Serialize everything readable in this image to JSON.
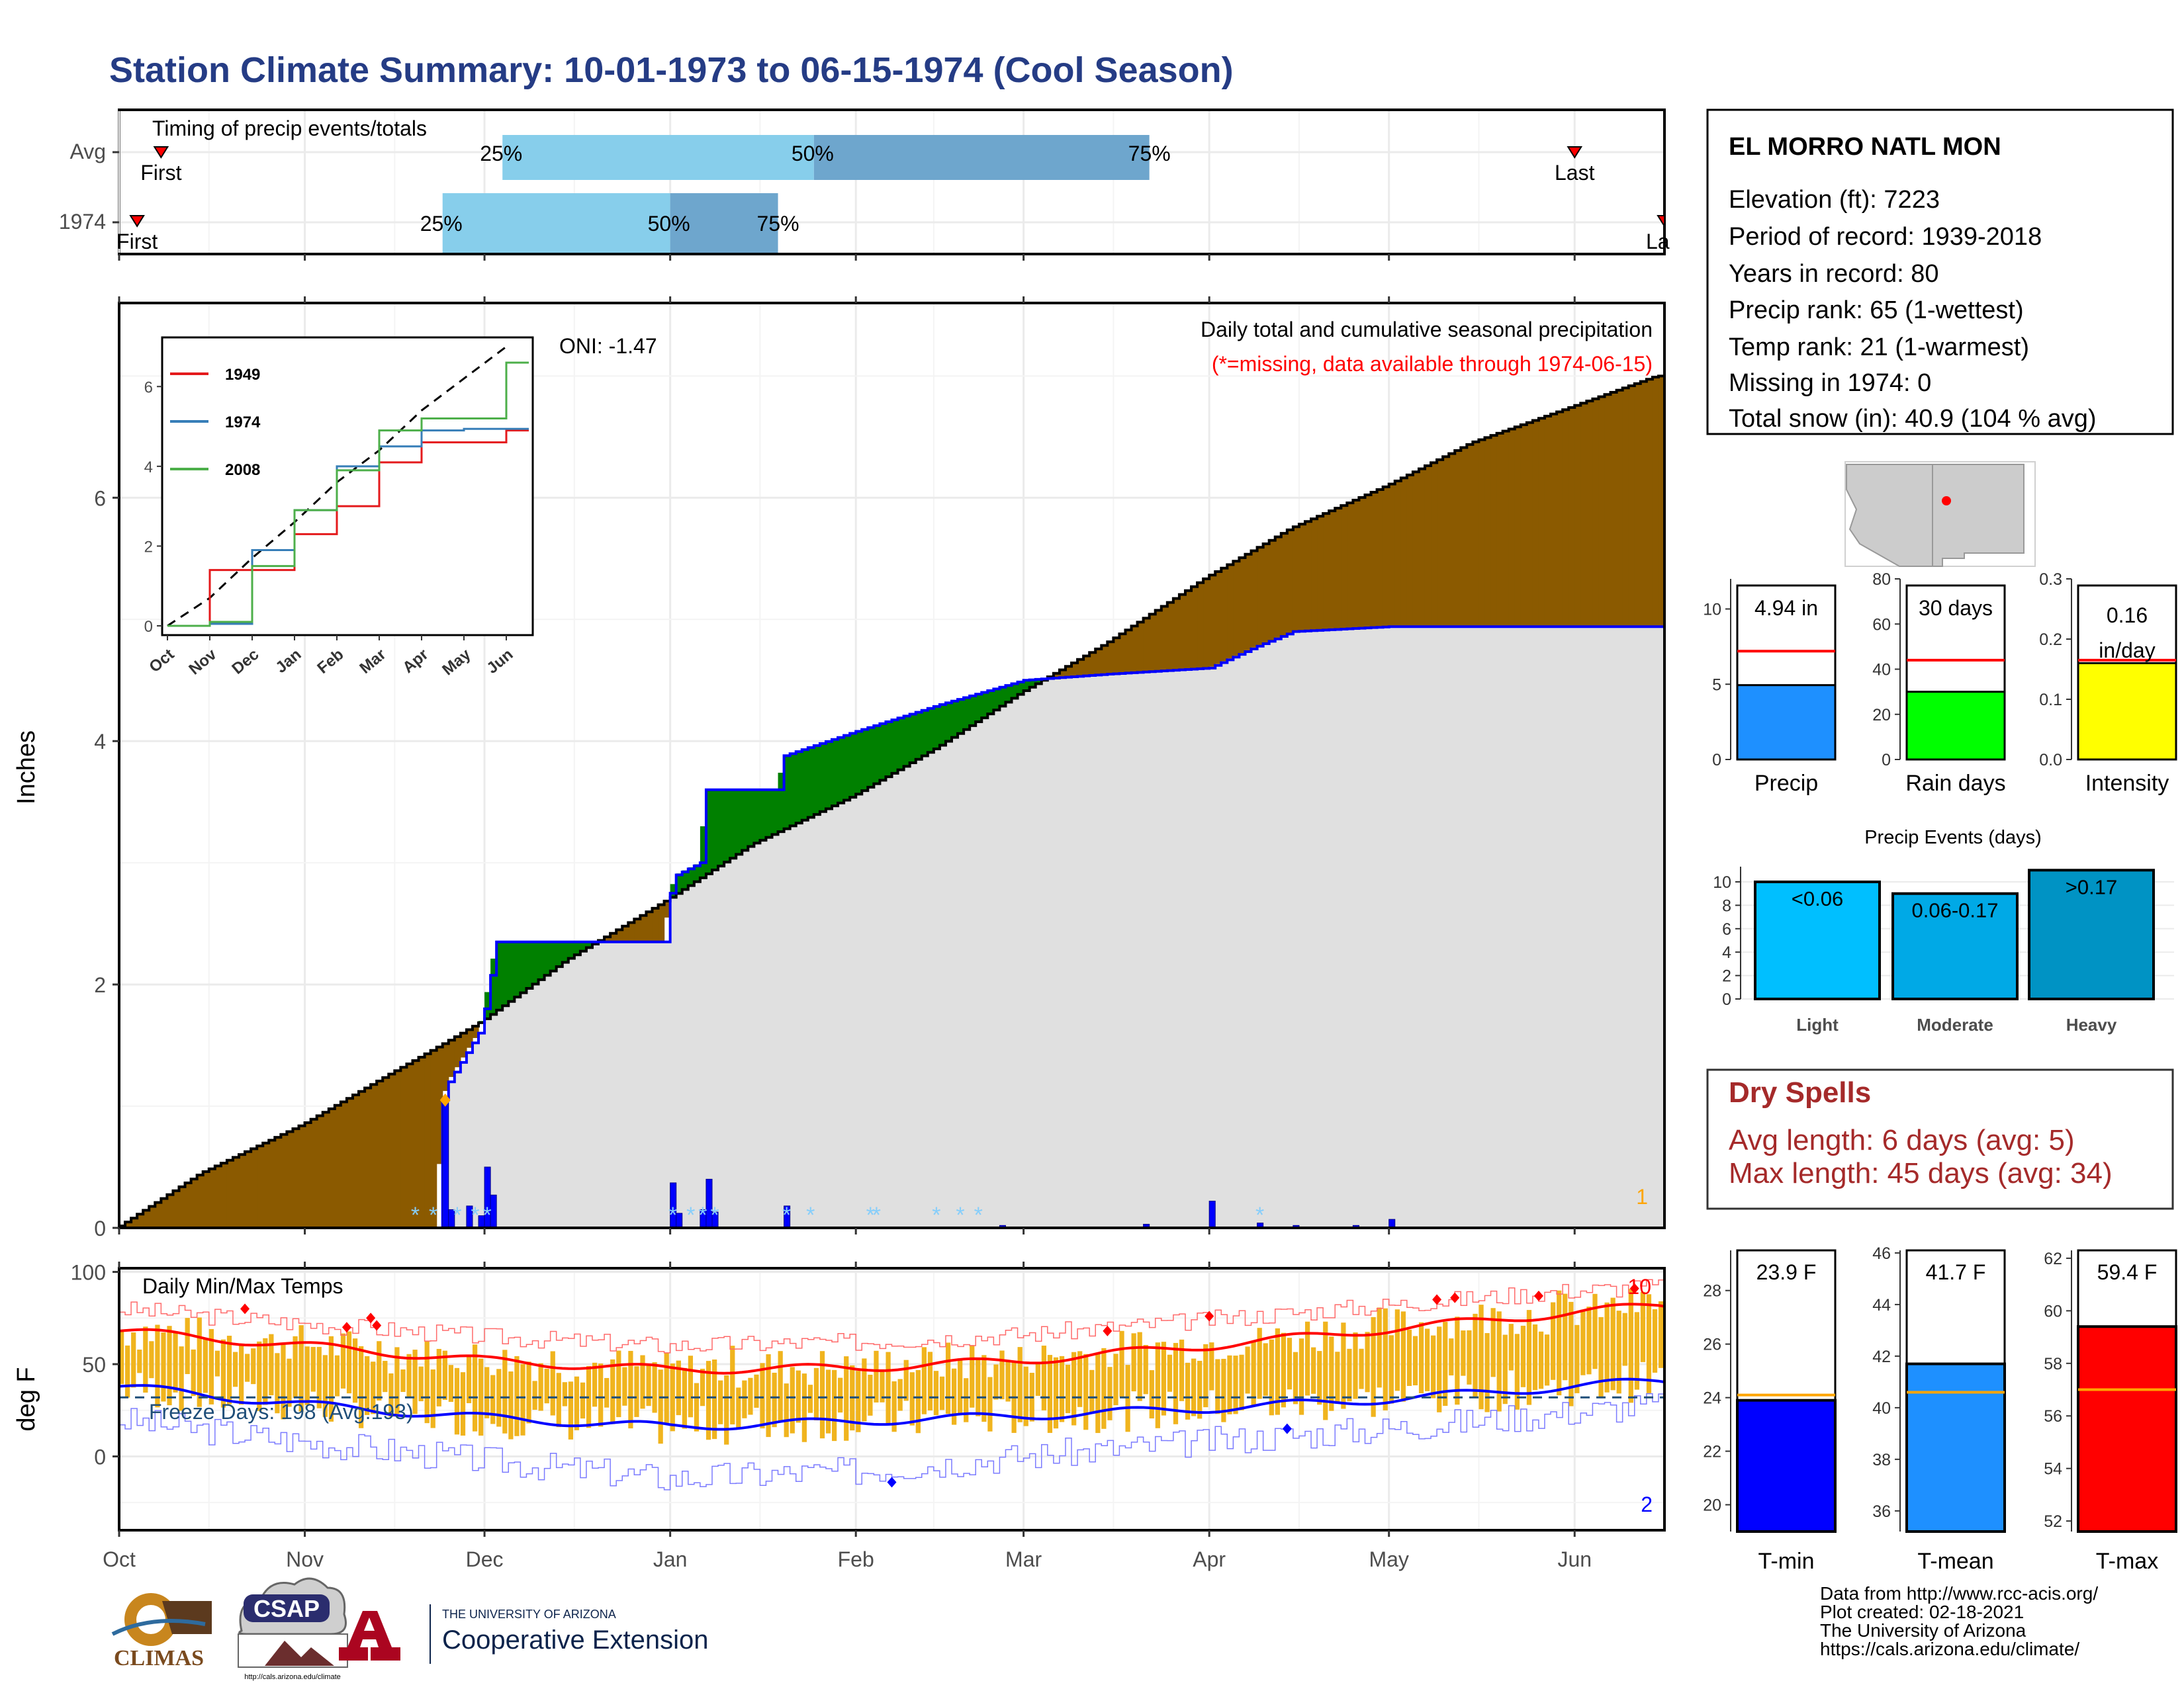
{
  "page": {
    "title": "Station Climate Summary: 10-01-1973 to 06-15-1974 (Cool Season)"
  },
  "timing": {
    "title": "Timing of precip events/totals",
    "rows": [
      {
        "label": "Avg",
        "first_label": "First",
        "last_label": "Last",
        "first_date": "1973-10-08",
        "last_date": "1974-06-01",
        "p25": "1973-12-04",
        "p50": "1974-01-25",
        "p75": "1974-03-22",
        "p25_label": "25%",
        "p50_label": "50%",
        "p75_label": "75%"
      },
      {
        "label": "1974",
        "first_label": "First",
        "last_label": "Last",
        "first_date": "1973-10-04",
        "last_date": "1974-06-15",
        "p25": "1973-11-24",
        "p50": "1974-01-01",
        "p75": "1974-01-19",
        "p25_label": "25%",
        "p50_label": "50%",
        "p75_label": "75%"
      }
    ]
  },
  "precip_panel": {
    "title": "Daily total and cumulative seasonal precipitation",
    "subtitle": "(*=missing, data available through 1974-06-15)",
    "ylabel": "Inches",
    "oni": "ONI: -1.47",
    "yticks": [
      "0",
      "2",
      "4",
      "6"
    ],
    "ylim": [
      0,
      7.6
    ],
    "corner_count": "1",
    "colors": {
      "above": "#008000",
      "below": "#8B5A00",
      "daily": "#0000FF",
      "avg_line": "#000000",
      "missing": "#87CEFA"
    }
  },
  "inset": {
    "yticks": [
      "0",
      "2",
      "4",
      "6"
    ],
    "xticks": [
      "Oct",
      "Nov",
      "Dec",
      "Jan",
      "Feb",
      "Mar",
      "Apr",
      "May",
      "Jun"
    ],
    "legend": [
      {
        "name": "1949",
        "color": "#E41A1C"
      },
      {
        "name": "1974",
        "color": "#377EB8"
      },
      {
        "name": "2008",
        "color": "#4DAF4A"
      }
    ]
  },
  "temp_panel": {
    "title": "Daily Min/Max Temps",
    "ylabel": "deg F",
    "yticks": [
      "0",
      "50",
      "100"
    ],
    "ylim": [
      -40,
      102
    ],
    "freeze_label": "Freeze Days: 198 (Avg:193)",
    "count_high": "10",
    "count_low": "2",
    "freeze_line": 32
  },
  "x_axis": {
    "months": [
      "Oct",
      "Nov",
      "Dec",
      "Jan",
      "Feb",
      "Mar",
      "Apr",
      "May",
      "Jun"
    ]
  },
  "station": {
    "name": "EL MORRO NATL MON",
    "lines": [
      "Elevation (ft): 7223",
      "Period of record: 1939-2018",
      "Years in record: 80",
      "Precip rank: 65 (1-wettest)",
      "Temp rank: 21 (1-warmest)",
      "Missing in 1974: 0",
      "Total snow (in): 40.9 (104 % avg)"
    ]
  },
  "summary_bars": [
    {
      "label": "Precip",
      "value": 4.94,
      "value_label": "4.94 in",
      "avg": 7.2,
      "ymax": 12,
      "yticks": [
        "0",
        "5",
        "10"
      ],
      "color": "#1E90FF"
    },
    {
      "label": "Rain days",
      "value": 30,
      "value_label": "30 days",
      "avg": 44,
      "ymax": 80,
      "yticks": [
        "0",
        "20",
        "40",
        "60",
        "80"
      ],
      "color": "#00FF00"
    },
    {
      "label": "Intensity",
      "value": 0.16,
      "value_label": "0.16",
      "value_unit": "in/day",
      "avg": 0.165,
      "ymax": 0.3,
      "yticks": [
        "0.0",
        "0.1",
        "0.2",
        "0.3"
      ],
      "color": "#FFFF00"
    }
  ],
  "precip_events": {
    "title": "Precip Events (days)",
    "yticks": [
      "0",
      "2",
      "4",
      "6",
      "8",
      "10"
    ],
    "bars": [
      {
        "label": "Light",
        "range": "<0.06",
        "value": 10,
        "color": "#00BFFF"
      },
      {
        "label": "Moderate",
        "range": "0.06-0.17",
        "value": 9,
        "color": "#00A9E6"
      },
      {
        "label": "Heavy",
        "range": ">0.17",
        "value": 11,
        "color": "#0093C4"
      }
    ]
  },
  "dry_spells": {
    "title": "Dry Spells",
    "avg_line": "Avg length: 6 days (avg: 5)",
    "max_line": "Max length: 45 days (avg: 34)"
  },
  "temp_bars": [
    {
      "label": "T-min",
      "value": 23.9,
      "value_label": "23.9 F",
      "avg": 24.1,
      "ylim": [
        19,
        29.5
      ],
      "yticks": [
        "20",
        "22",
        "24",
        "26",
        "28"
      ],
      "color": "#0000FF"
    },
    {
      "label": "T-mean",
      "value": 41.7,
      "value_label": "41.7 F",
      "avg": 40.6,
      "ylim": [
        35.2,
        46.1
      ],
      "yticks": [
        "36",
        "38",
        "40",
        "42",
        "44",
        "46"
      ],
      "color": "#1E90FF"
    },
    {
      "label": "T-max",
      "value": 59.4,
      "value_label": "59.4 F",
      "avg": 57.0,
      "ylim": [
        51.6,
        62.3
      ],
      "yticks": [
        "52",
        "54",
        "56",
        "58",
        "60",
        "62"
      ],
      "color": "#FF0000"
    }
  ],
  "logos": {
    "climas": "CLIMAS",
    "csap": "CSAP",
    "csap_url": "http://cals.arizona.edu/climate",
    "ua_line1": "THE UNIVERSITY OF ARIZONA",
    "ua_line2": "Cooperative Extension"
  },
  "credits": [
    "Data from http://www.rcc-acis.org/",
    "Plot created: 02-18-2021",
    "The University of Arizona",
    "https://cals.arizona.edu/climate/"
  ],
  "chart_data": [
    {
      "type": "area",
      "title": "Daily total and cumulative seasonal precipitation",
      "ylabel": "Inches",
      "ylim": [
        0,
        7.6
      ],
      "series": [
        {
          "name": "",
          "x": [
            "1973-10-01",
            "1973-10-15",
            "1973-11-01",
            "1973-11-15",
            "1973-11-24",
            "1973-12-01",
            "1973-12-15",
            "1974-01-01",
            "1974-01-15",
            "1974-02-01",
            "1974-02-15",
            "1974-03-01",
            "1974-03-15",
            "1974-04-01",
            "1974-04-15",
            "1974-05-01",
            "1974-05-15",
            "1974-06-01",
            "1974-06-15"
          ],
          "values": [
            0.0,
            0.45,
            0.85,
            1.25,
            1.5,
            1.7,
            2.2,
            2.7,
            3.15,
            3.55,
            3.95,
            4.4,
            4.8,
            5.35,
            5.75,
            6.1,
            6.45,
            6.75,
            7.0
          ]
        },
        {
          "name": "1974",
          "x": [
            "1973-10-01",
            "1973-11-23",
            "1973-11-24",
            "1973-11-25",
            "1973-11-30",
            "1973-12-01",
            "1973-12-03",
            "1973-12-31",
            "1974-01-01",
            "1974-01-02",
            "1974-01-06",
            "1974-01-07",
            "1974-01-19",
            "1974-01-20",
            "1974-02-01",
            "1974-02-15",
            "1974-03-01",
            "1974-03-15",
            "1974-04-01",
            "1974-04-09",
            "1974-04-15",
            "1974-05-01",
            "1974-06-15"
          ],
          "values": [
            0.0,
            0.0,
            1.05,
            1.2,
            1.6,
            1.8,
            2.35,
            2.35,
            2.75,
            2.9,
            3.0,
            3.6,
            3.6,
            3.88,
            4.08,
            4.3,
            4.5,
            4.55,
            4.6,
            4.78,
            4.9,
            4.94,
            4.94
          ]
        }
      ],
      "daily": {
        "x": [
          "1973-11-24",
          "1973-11-25",
          "1973-11-28",
          "1973-11-30",
          "1973-12-01",
          "1973-12-02",
          "1974-01-01",
          "1974-01-02",
          "1974-01-06",
          "1974-01-07",
          "1974-01-08",
          "1974-01-20",
          "1974-02-25",
          "1974-03-21",
          "1974-04-01",
          "1974-04-09",
          "1974-04-15",
          "1974-04-25",
          "1974-05-01"
        ],
        "values": [
          1.05,
          0.15,
          0.18,
          0.1,
          0.5,
          0.27,
          0.37,
          0.12,
          0.15,
          0.4,
          0.13,
          0.18,
          0.02,
          0.03,
          0.22,
          0.04,
          0.02,
          0.02,
          0.07
        ]
      }
    },
    {
      "type": "line",
      "ylim": [
        0,
        7.0
      ],
      "x": [
        "Oct",
        "Nov",
        "Dec",
        "Jan",
        "Feb",
        "Mar",
        "Apr",
        "May",
        "Jun"
      ],
      "series": [
        {
          "name": "",
          "values": [
            0.0,
            0.7,
            1.7,
            2.6,
            3.6,
            4.4,
            5.4,
            6.2,
            7.0
          ]
        },
        {
          "name": "1949",
          "values": [
            0.0,
            1.4,
            1.4,
            2.3,
            3.0,
            4.1,
            4.6,
            4.6,
            4.9
          ]
        },
        {
          "name": "1974",
          "values": [
            0.0,
            0.05,
            1.9,
            2.9,
            4.0,
            4.5,
            4.9,
            4.94,
            4.94
          ]
        },
        {
          "name": "2008",
          "values": [
            0.0,
            0.1,
            1.5,
            2.9,
            3.9,
            4.9,
            5.2,
            5.2,
            6.6
          ]
        }
      ]
    },
    {
      "type": "line",
      "title": "Daily Min/Max Temps",
      "ylabel": "deg F",
      "ylim": [
        -40,
        102
      ],
      "x": [
        "1973-10-01",
        "1973-11-01",
        "1973-12-01",
        "1974-01-01",
        "1974-02-01",
        "1974-03-01",
        "1974-04-01",
        "1974-05-01",
        "1974-06-01",
        "1974-06-15"
      ],
      "series": [
        {
          "name": "",
          "values": [
            68,
            60,
            52,
            47,
            48,
            52,
            60,
            69,
            78,
            82
          ]
        },
        {
          "name": "",
          "values": [
            38,
            28,
            21,
            16,
            19,
            22,
            26,
            31,
            38,
            41
          ]
        },
        {
          "name": "",
          "values": [
            80,
            72,
            65,
            60,
            62,
            66,
            74,
            82,
            90,
            92
          ]
        },
        {
          "name": "",
          "values": [
            20,
            8,
            -2,
            -12,
            -8,
            0,
            8,
            15,
            24,
            28
          ]
        }
      ]
    },
    {
      "type": "bar",
      "categories": [
        "Precip",
        "Rain days",
        "Intensity"
      ],
      "values": [
        4.94,
        30,
        0.16
      ]
    },
    {
      "type": "bar",
      "title": "Precip Events (days)",
      "categories": [
        "Light",
        "Moderate",
        "Heavy"
      ],
      "values": [
        10,
        9,
        11
      ]
    },
    {
      "type": "bar",
      "categories": [
        "T-min",
        "T-mean",
        "T-max"
      ],
      "values": [
        23.9,
        41.7,
        59.4
      ]
    }
  ]
}
